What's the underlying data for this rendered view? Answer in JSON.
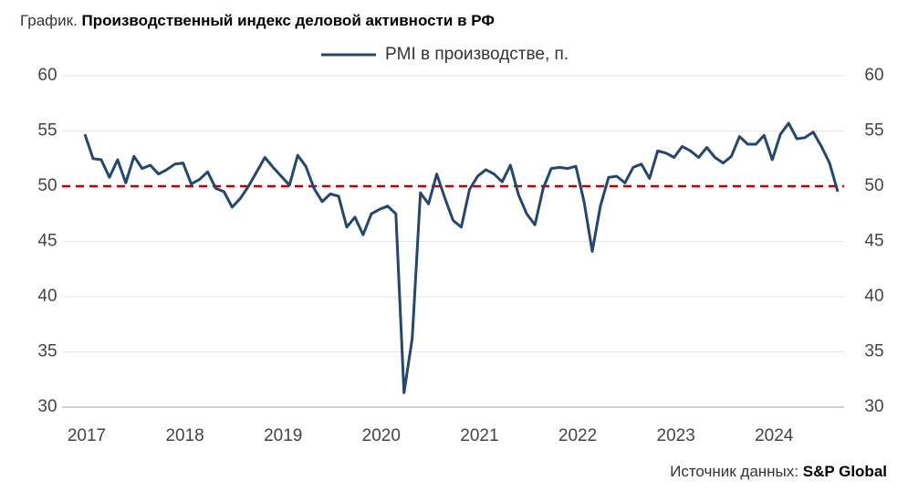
{
  "chart_data": {
    "type": "line",
    "title_prefix": "График.",
    "title": "Производственный индекс деловой активности в РФ",
    "source_prefix": "Источник данных:",
    "source": "S&P Global",
    "categories": [
      "2017",
      null,
      null,
      null,
      null,
      null,
      null,
      null,
      null,
      null,
      null,
      null,
      "2018",
      null,
      null,
      null,
      null,
      null,
      null,
      null,
      null,
      null,
      null,
      null,
      "2019",
      null,
      null,
      null,
      null,
      null,
      null,
      null,
      null,
      null,
      null,
      null,
      "2020",
      null,
      null,
      null,
      null,
      null,
      null,
      null,
      null,
      null,
      null,
      null,
      "2021",
      null,
      null,
      null,
      null,
      null,
      null,
      null,
      null,
      null,
      null,
      null,
      "2022",
      null,
      null,
      null,
      null,
      null,
      null,
      null,
      null,
      null,
      null,
      null,
      "2023",
      null,
      null,
      null,
      null,
      null,
      null,
      null,
      null,
      null,
      null,
      null,
      "2024",
      null,
      null,
      null,
      null,
      null,
      null,
      null,
      null
    ],
    "series": [
      {
        "name": "PMI в производстве, п.",
        "color": "#24476b",
        "values": [
          54.7,
          52.5,
          52.4,
          50.8,
          52.4,
          50.3,
          52.7,
          51.6,
          51.9,
          51.1,
          51.5,
          52.0,
          52.1,
          50.2,
          50.6,
          51.3,
          49.8,
          49.5,
          48.1,
          48.9,
          50.0,
          51.3,
          52.6,
          51.7,
          50.9,
          50.1,
          52.8,
          51.8,
          49.8,
          48.6,
          49.3,
          49.1,
          46.3,
          47.2,
          45.6,
          47.5,
          47.9,
          48.2,
          47.5,
          31.3,
          36.2,
          49.4,
          48.4,
          51.1,
          48.9,
          46.9,
          46.3,
          49.7,
          50.9,
          51.5,
          51.1,
          50.4,
          51.9,
          49.2,
          47.5,
          46.5,
          49.8,
          51.6,
          51.7,
          51.6,
          51.8,
          48.6,
          44.1,
          48.2,
          50.8,
          50.9,
          50.3,
          51.7,
          52.0,
          50.7,
          53.2,
          53.0,
          52.6,
          53.6,
          53.2,
          52.6,
          53.5,
          52.6,
          52.1,
          52.7,
          54.5,
          53.8,
          53.8,
          54.6,
          52.4,
          54.7,
          55.7,
          54.3,
          54.4,
          54.9,
          53.6,
          52.1,
          49.5
        ]
      }
    ],
    "reference_line": {
      "value": 50,
      "color": "#c00000"
    },
    "ylim": [
      30,
      60
    ],
    "yticks": [
      30,
      35,
      40,
      45,
      50,
      55,
      60
    ],
    "grid": true
  }
}
